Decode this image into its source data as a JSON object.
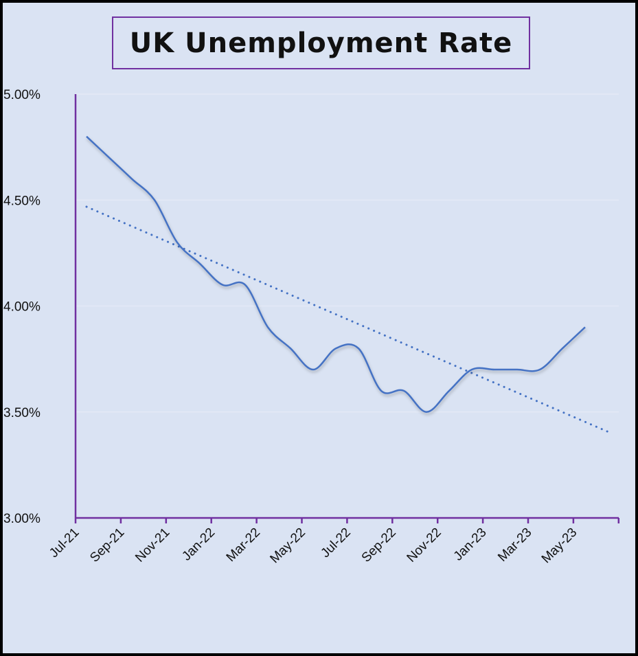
{
  "chart_data": {
    "type": "line",
    "title": "UK Unemployment Rate",
    "xlabel": "",
    "ylabel": "",
    "ylim": [
      3.0,
      5.0
    ],
    "y_ticks": [
      "3.00%",
      "3.50%",
      "4.00%",
      "4.50%",
      "5.00%"
    ],
    "y_tick_values": [
      3.0,
      3.5,
      4.0,
      4.5,
      5.0
    ],
    "x_tick_labels": [
      "Jul-21",
      "Sep-21",
      "Nov-21",
      "Jan-22",
      "Mar-22",
      "May-22",
      "Jul-22",
      "Sep-22",
      "Nov-22",
      "Jan-23",
      "Mar-23",
      "May-23"
    ],
    "x": [
      "Jul-21",
      "Aug-21",
      "Sep-21",
      "Oct-21",
      "Nov-21",
      "Dec-21",
      "Jan-22",
      "Feb-22",
      "Mar-22",
      "Apr-22",
      "May-22",
      "Jun-22",
      "Jul-22",
      "Aug-22",
      "Sep-22",
      "Oct-22",
      "Nov-22",
      "Dec-22",
      "Jan-23",
      "Feb-23",
      "Mar-23",
      "Apr-23",
      "May-23"
    ],
    "series": [
      {
        "values": [
          4.8,
          4.7,
          4.6,
          4.5,
          4.3,
          4.2,
          4.1,
          4.1,
          3.9,
          3.8,
          3.7,
          3.8,
          3.8,
          3.6,
          3.6,
          3.5,
          3.6,
          3.7,
          3.7,
          3.7,
          3.7,
          3.8,
          3.9
        ],
        "smooth": true,
        "color": "#4472C4"
      }
    ],
    "trendline": {
      "type": "linear",
      "style": "dotted",
      "forward_periods": 1,
      "color": "#4472C4"
    },
    "grid": true,
    "axis_color": "#7030A0",
    "background": "#DAE3F3"
  }
}
